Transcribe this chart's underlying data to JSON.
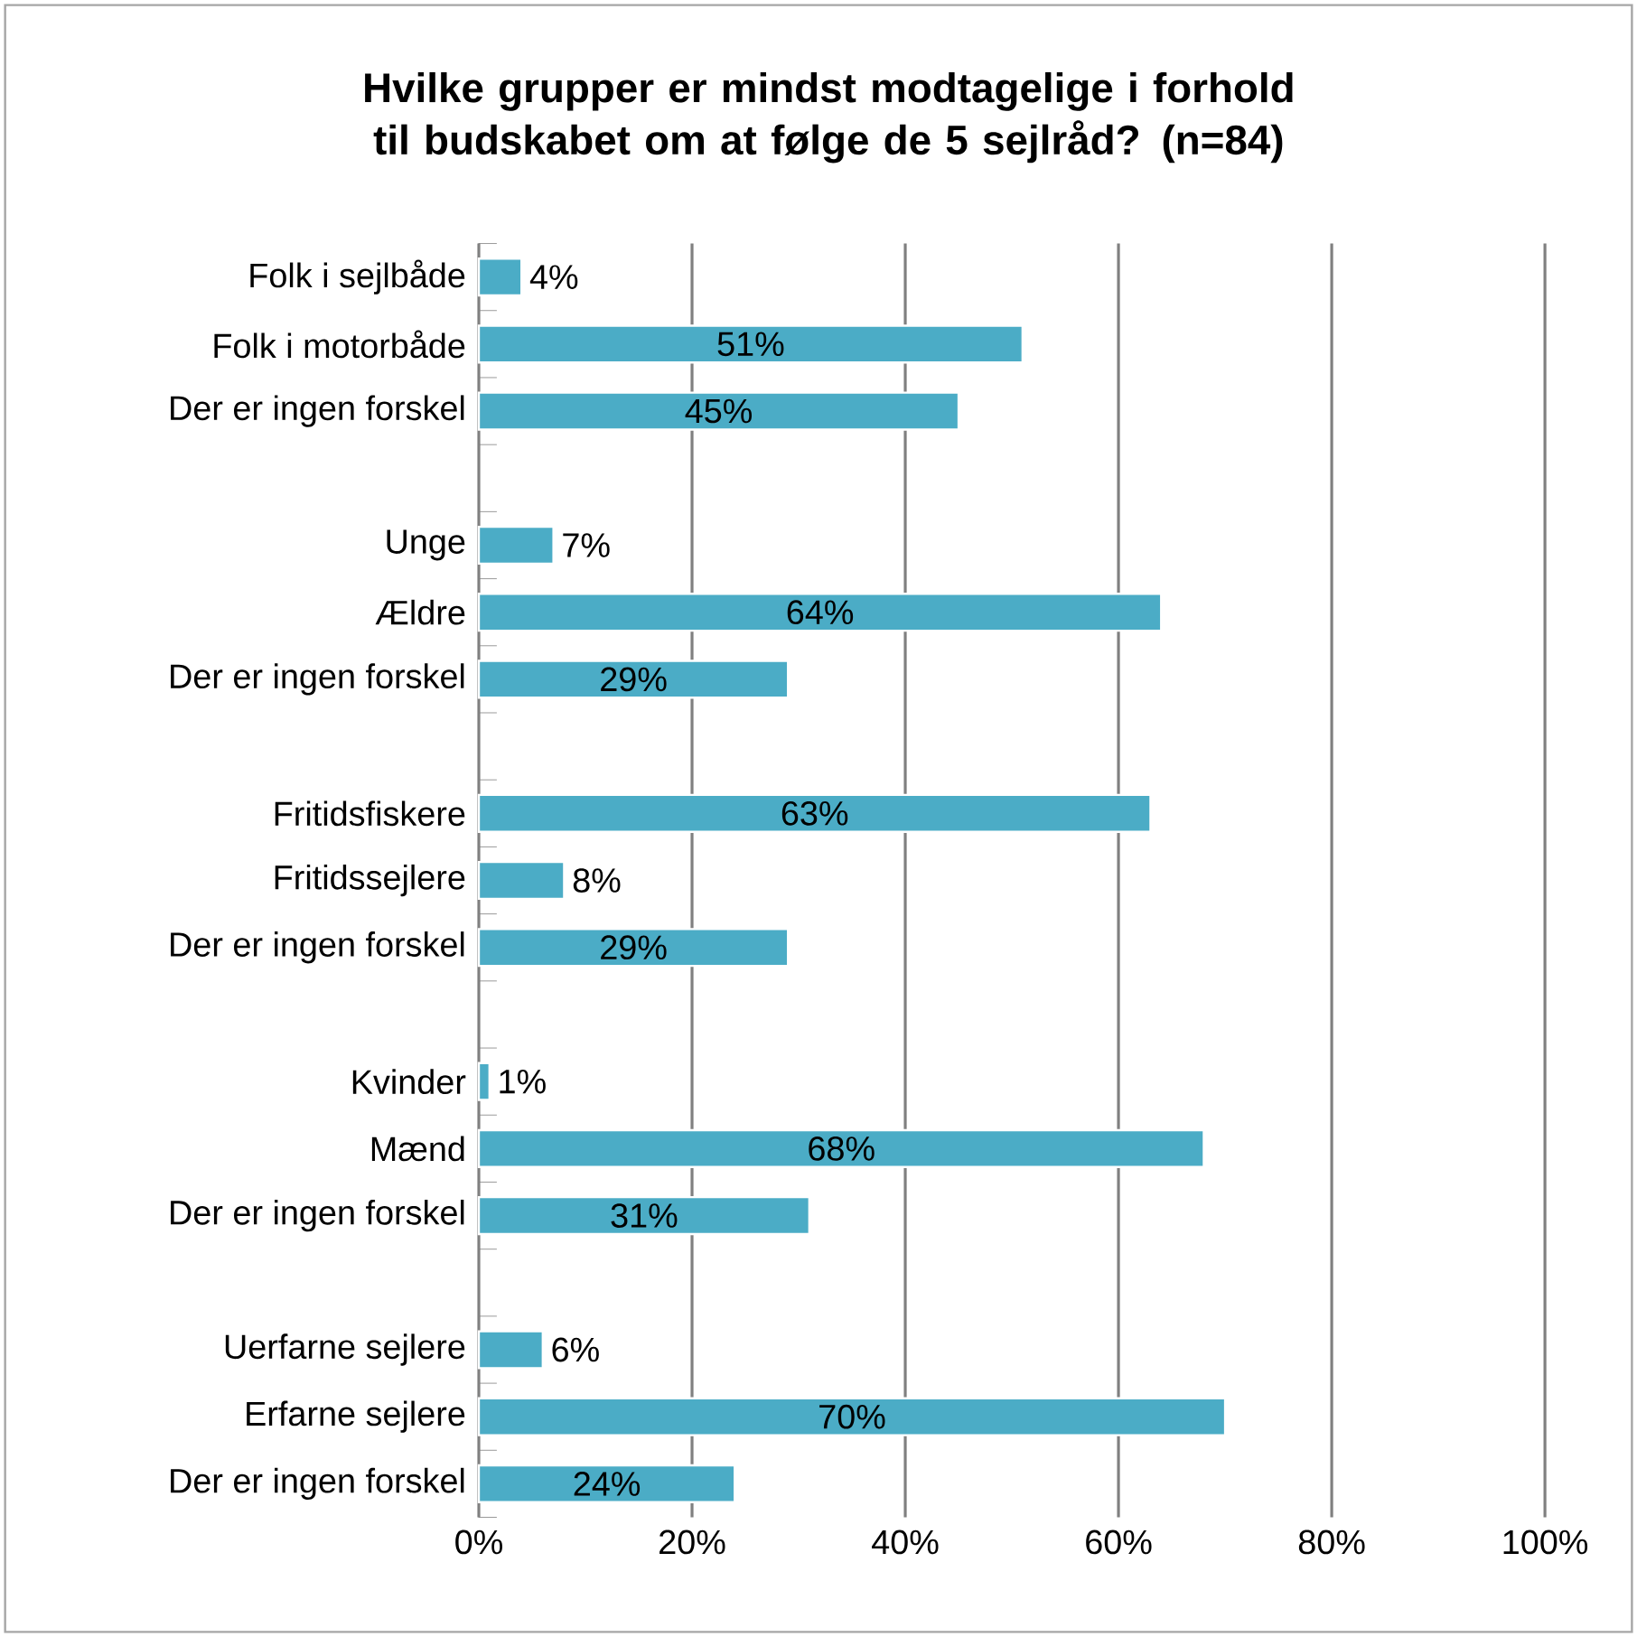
{
  "chart_data": {
    "type": "bar",
    "orientation": "horizontal",
    "title": "Hvilke grupper er mindst modtagelige i forhold til budskabet om at følge de 5 sejlråd? (n=84)",
    "categories": [
      "Folk i sejlbåde",
      "Folk i motorbåde",
      "Der er ingen forskel",
      null,
      "Unge",
      "Ældre",
      "Der er ingen forskel",
      null,
      "Fritidsfiskere",
      "Fritidssejlere",
      "Der er ingen forskel",
      null,
      "Kvinder",
      "Mænd",
      "Der er ingen forskel",
      null,
      "Uerfarne sejlere",
      "Erfarne sejlere",
      "Der er ingen forskel"
    ],
    "values": [
      4,
      51,
      45,
      null,
      7,
      64,
      29,
      null,
      63,
      8,
      29,
      null,
      1,
      68,
      31,
      null,
      6,
      70,
      24
    ],
    "value_labels": [
      "4%",
      "51%",
      "45%",
      null,
      "7%",
      "64%",
      "29%",
      null,
      "63%",
      "8%",
      "29%",
      null,
      "1%",
      "68%",
      "31%",
      null,
      "6%",
      "70%",
      "24%"
    ],
    "color": "#4bacc6",
    "xlim": [
      0,
      100
    ],
    "xticks": [
      {
        "value": 0,
        "label": "0%"
      },
      {
        "value": 20,
        "label": "20%"
      },
      {
        "value": 40,
        "label": "40%"
      },
      {
        "value": 60,
        "label": "60%"
      },
      {
        "value": 80,
        "label": "80%"
      },
      {
        "value": 100,
        "label": "100%"
      }
    ],
    "grid": "x"
  }
}
